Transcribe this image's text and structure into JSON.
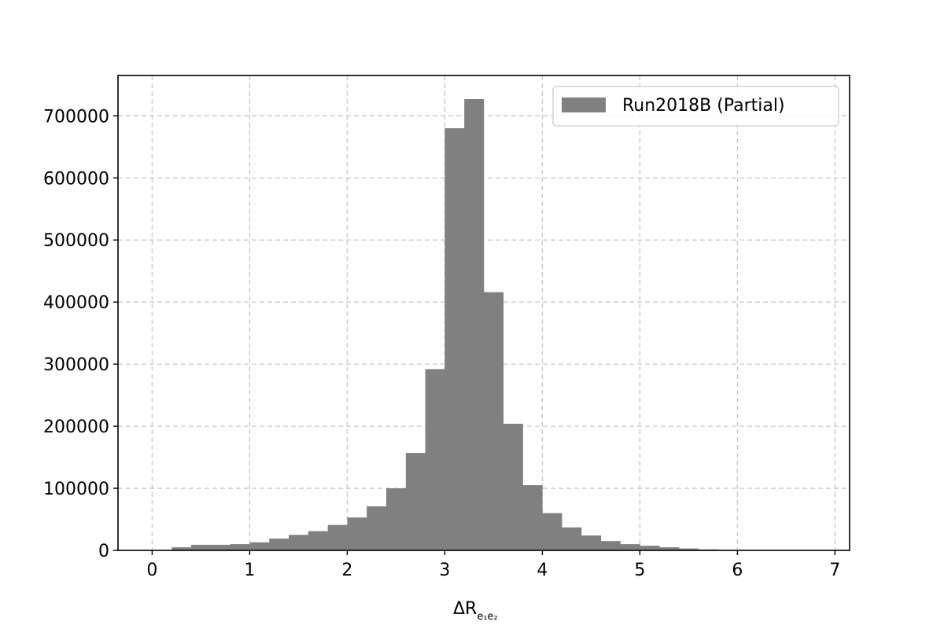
{
  "chart_data": {
    "type": "bar",
    "bin_width": 0.2,
    "x": [
      0.2,
      0.4,
      0.6,
      0.8,
      1.0,
      1.2,
      1.4,
      1.6,
      1.8,
      2.0,
      2.2,
      2.4,
      2.6,
      2.8,
      3.0,
      3.2,
      3.4,
      3.6,
      3.8,
      4.0,
      4.2,
      4.4,
      4.6,
      4.8,
      5.0,
      5.2,
      5.4,
      5.6,
      5.8,
      6.0,
      6.2,
      6.4,
      6.6,
      6.8
    ],
    "series": [
      {
        "name": "Run2018B (Partial)",
        "color": "#808080",
        "values": [
          5000,
          9000,
          9000,
          10000,
          13000,
          19000,
          25000,
          31000,
          41000,
          53000,
          71000,
          100000,
          157000,
          292000,
          680000,
          727000,
          416000,
          204000,
          105000,
          60000,
          37000,
          24000,
          15000,
          10000,
          7500,
          5000,
          3000,
          1500,
          800,
          400,
          200,
          100,
          50,
          20
        ]
      }
    ],
    "xlim": [
      -0.35,
      7.15
    ],
    "ylim": [
      0,
      765000
    ],
    "xticks": [
      "0",
      "1",
      "2",
      "3",
      "4",
      "5",
      "6",
      "7"
    ],
    "xtick_values": [
      0,
      1,
      2,
      3,
      4,
      5,
      6,
      7
    ],
    "yticks": [
      "0",
      "100000",
      "200000",
      "300000",
      "400000",
      "500000",
      "600000",
      "700000"
    ],
    "ytick_values": [
      0,
      100000,
      200000,
      300000,
      400000,
      500000,
      600000,
      700000
    ],
    "xlabel": "ΔR",
    "xlabel_subscript": "e₁e₂",
    "ylabel": "",
    "title": "",
    "grid": true,
    "legend_position": "upper-right"
  }
}
